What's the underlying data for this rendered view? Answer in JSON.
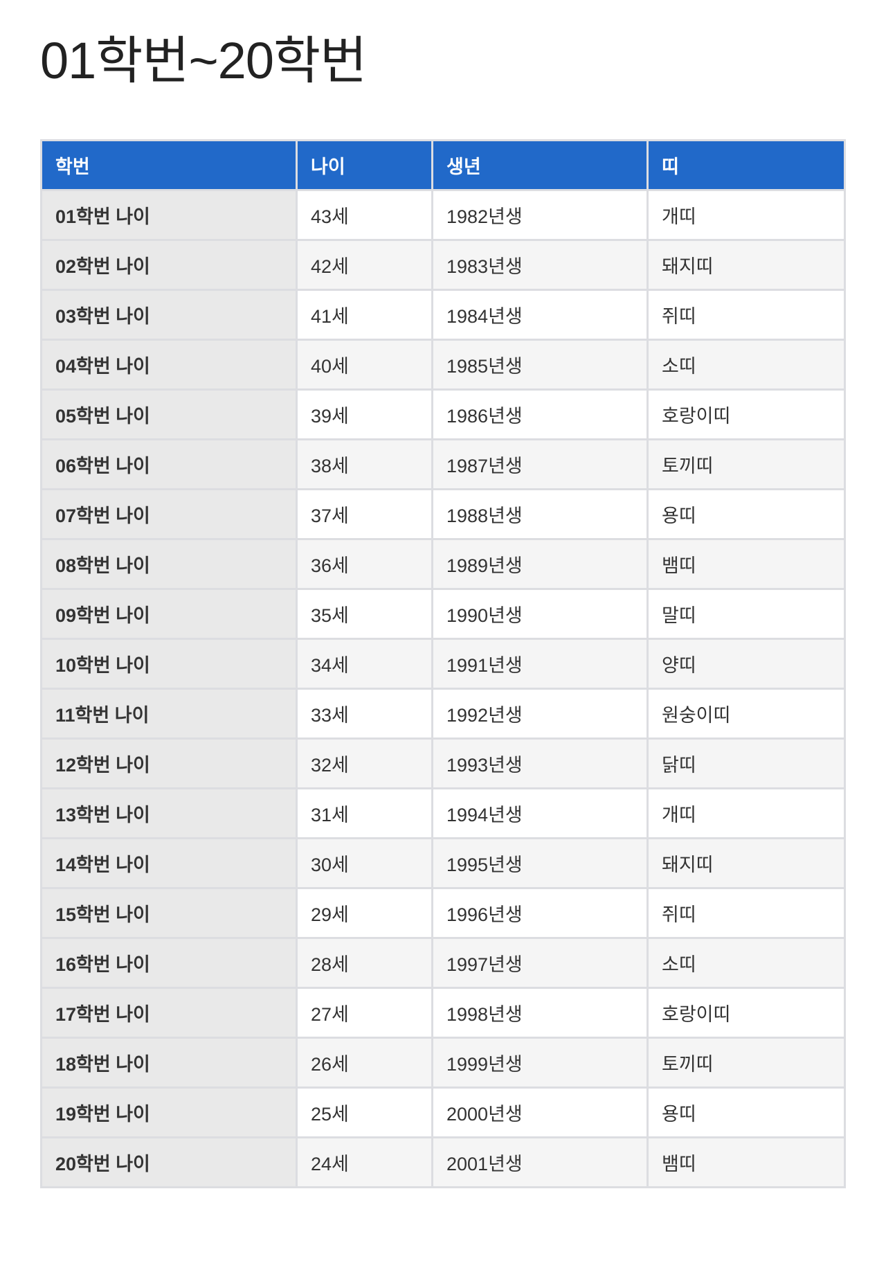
{
  "title": "01학번~20학번",
  "table": {
    "headers": [
      "학번",
      "나이",
      "생년",
      "띠"
    ],
    "rows": [
      [
        "01학번 나이",
        "43세",
        "1982년생",
        "개띠"
      ],
      [
        "02학번 나이",
        "42세",
        "1983년생",
        "돼지띠"
      ],
      [
        "03학번 나이",
        "41세",
        "1984년생",
        "쥐띠"
      ],
      [
        "04학번 나이",
        "40세",
        "1985년생",
        "소띠"
      ],
      [
        "05학번 나이",
        "39세",
        "1986년생",
        "호랑이띠"
      ],
      [
        "06학번 나이",
        "38세",
        "1987년생",
        "토끼띠"
      ],
      [
        "07학번 나이",
        "37세",
        "1988년생",
        "용띠"
      ],
      [
        "08학번 나이",
        "36세",
        "1989년생",
        "뱀띠"
      ],
      [
        "09학번 나이",
        "35세",
        "1990년생",
        "말띠"
      ],
      [
        "10학번 나이",
        "34세",
        "1991년생",
        "양띠"
      ],
      [
        "11학번 나이",
        "33세",
        "1992년생",
        "원숭이띠"
      ],
      [
        "12학번 나이",
        "32세",
        "1993년생",
        "닭띠"
      ],
      [
        "13학번 나이",
        "31세",
        "1994년생",
        "개띠"
      ],
      [
        "14학번 나이",
        "30세",
        "1995년생",
        "돼지띠"
      ],
      [
        "15학번 나이",
        "29세",
        "1996년생",
        "쥐띠"
      ],
      [
        "16학번 나이",
        "28세",
        "1997년생",
        "소띠"
      ],
      [
        "17학번 나이",
        "27세",
        "1998년생",
        "호랑이띠"
      ],
      [
        "18학번 나이",
        "26세",
        "1999년생",
        "토끼띠"
      ],
      [
        "19학번 나이",
        "25세",
        "2000년생",
        "용띠"
      ],
      [
        "20학번 나이",
        "24세",
        "2001년생",
        "뱀띠"
      ]
    ]
  },
  "colors": {
    "header_bg": "#2169c9",
    "first_col_bg": "#e9e9e9",
    "stripe_bg": "#f5f5f5",
    "border": "#dcdde1"
  }
}
